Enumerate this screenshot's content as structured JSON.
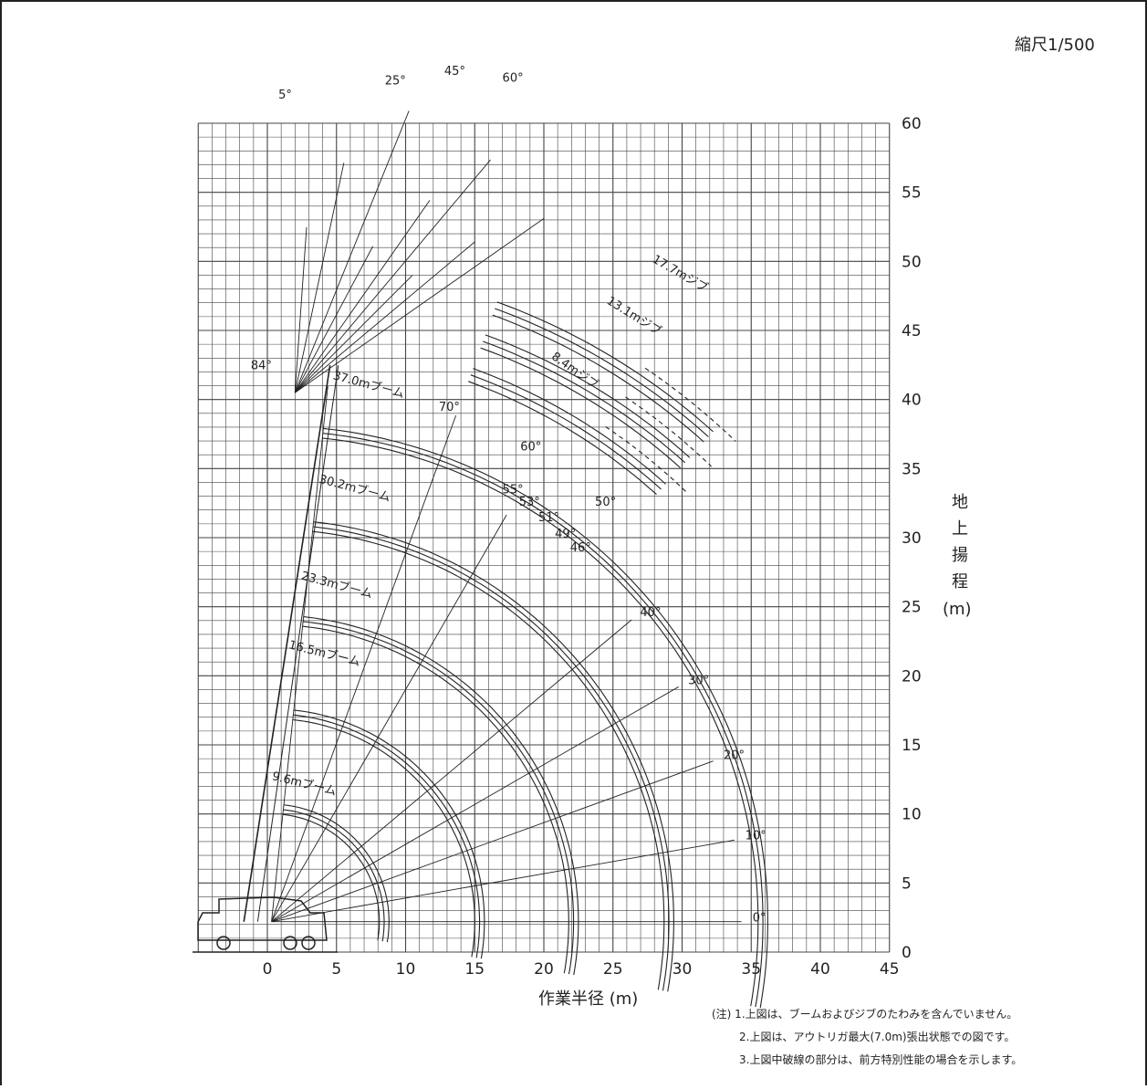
{
  "scale_label": "縮尺1/500",
  "x_axis": {
    "title": "作業半径 (m)",
    "min": -5,
    "max": 45,
    "ticks": [
      "0",
      "5",
      "10",
      "15",
      "20",
      "25",
      "30",
      "35",
      "40",
      "45"
    ]
  },
  "y_axis": {
    "title_chars": [
      "地",
      "上",
      "揚",
      "程"
    ],
    "unit": "(m)",
    "min": 0,
    "max": 60,
    "ticks": [
      "0",
      "5",
      "10",
      "15",
      "20",
      "25",
      "30",
      "35",
      "40",
      "45",
      "50",
      "55",
      "60"
    ]
  },
  "booms": [
    {
      "label": "9.6mブーム",
      "length": 9.6
    },
    {
      "label": "16.5mブーム",
      "length": 16.5
    },
    {
      "label": "23.3mブーム",
      "length": 23.3
    },
    {
      "label": "30.2mブーム",
      "length": 30.2
    },
    {
      "label": "37.0mブーム",
      "length": 37.0
    }
  ],
  "jibs": [
    {
      "label": "8.4mジブ",
      "length": 8.4
    },
    {
      "label": "13.1mジブ",
      "length": 13.1
    },
    {
      "label": "17.7mジブ",
      "length": 17.7
    }
  ],
  "boom_angles": [
    "0°",
    "10°",
    "20°",
    "30°",
    "40°",
    "60°",
    "70°",
    "84°"
  ],
  "boom_angle_values": [
    0,
    10,
    20,
    30,
    40,
    60,
    70,
    84
  ],
  "jib_offsets": [
    "5°",
    "25°",
    "45°",
    "60°"
  ],
  "jib_end_angles": [
    "55°",
    "53°",
    "51°",
    "50°",
    "49°",
    "46°"
  ],
  "notes": [
    "(注) 1.上図は、ブームおよびジブのたわみを含んでいません。",
    "2.上図は、アウトリガ最大(7.0m)張出状態での図です。",
    "3.上図中破線の部分は、前方特別性能の場合を示します。"
  ],
  "colors": {
    "line": "#222222",
    "grid": "#444444"
  }
}
